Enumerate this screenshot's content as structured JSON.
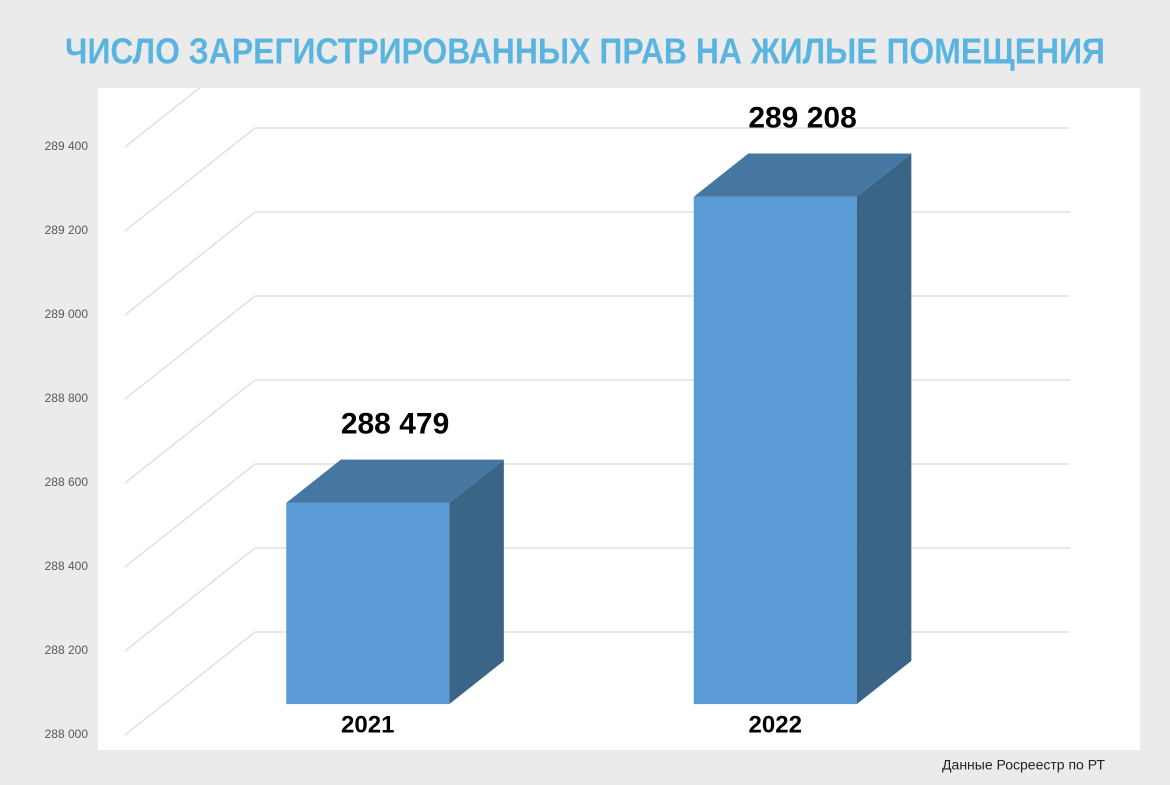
{
  "chart_data": {
    "type": "bar3d",
    "title": "ЧИСЛО ЗАРЕГИСТРИРОВАННЫХ ПРАВ НА ЖИЛЫЕ ПОМЕЩЕНИЯ",
    "source": "Данные Росреестр по РТ",
    "categories": [
      "2021",
      "2022"
    ],
    "values": [
      288479,
      289208
    ],
    "value_labels": [
      "288 479",
      "289 208"
    ],
    "color": "#5b9bd5",
    "ylim": [
      288000,
      289400
    ],
    "yticks": [
      {
        "value": 288000,
        "label": "288 000"
      },
      {
        "value": 288200,
        "label": "288 200"
      },
      {
        "value": 288400,
        "label": "288 400"
      },
      {
        "value": 288600,
        "label": "288 600"
      },
      {
        "value": 288800,
        "label": "288 800"
      },
      {
        "value": 289000,
        "label": "289 000"
      },
      {
        "value": 289200,
        "label": "289 200"
      },
      {
        "value": 289400,
        "label": "289 400"
      }
    ],
    "grid": true
  }
}
